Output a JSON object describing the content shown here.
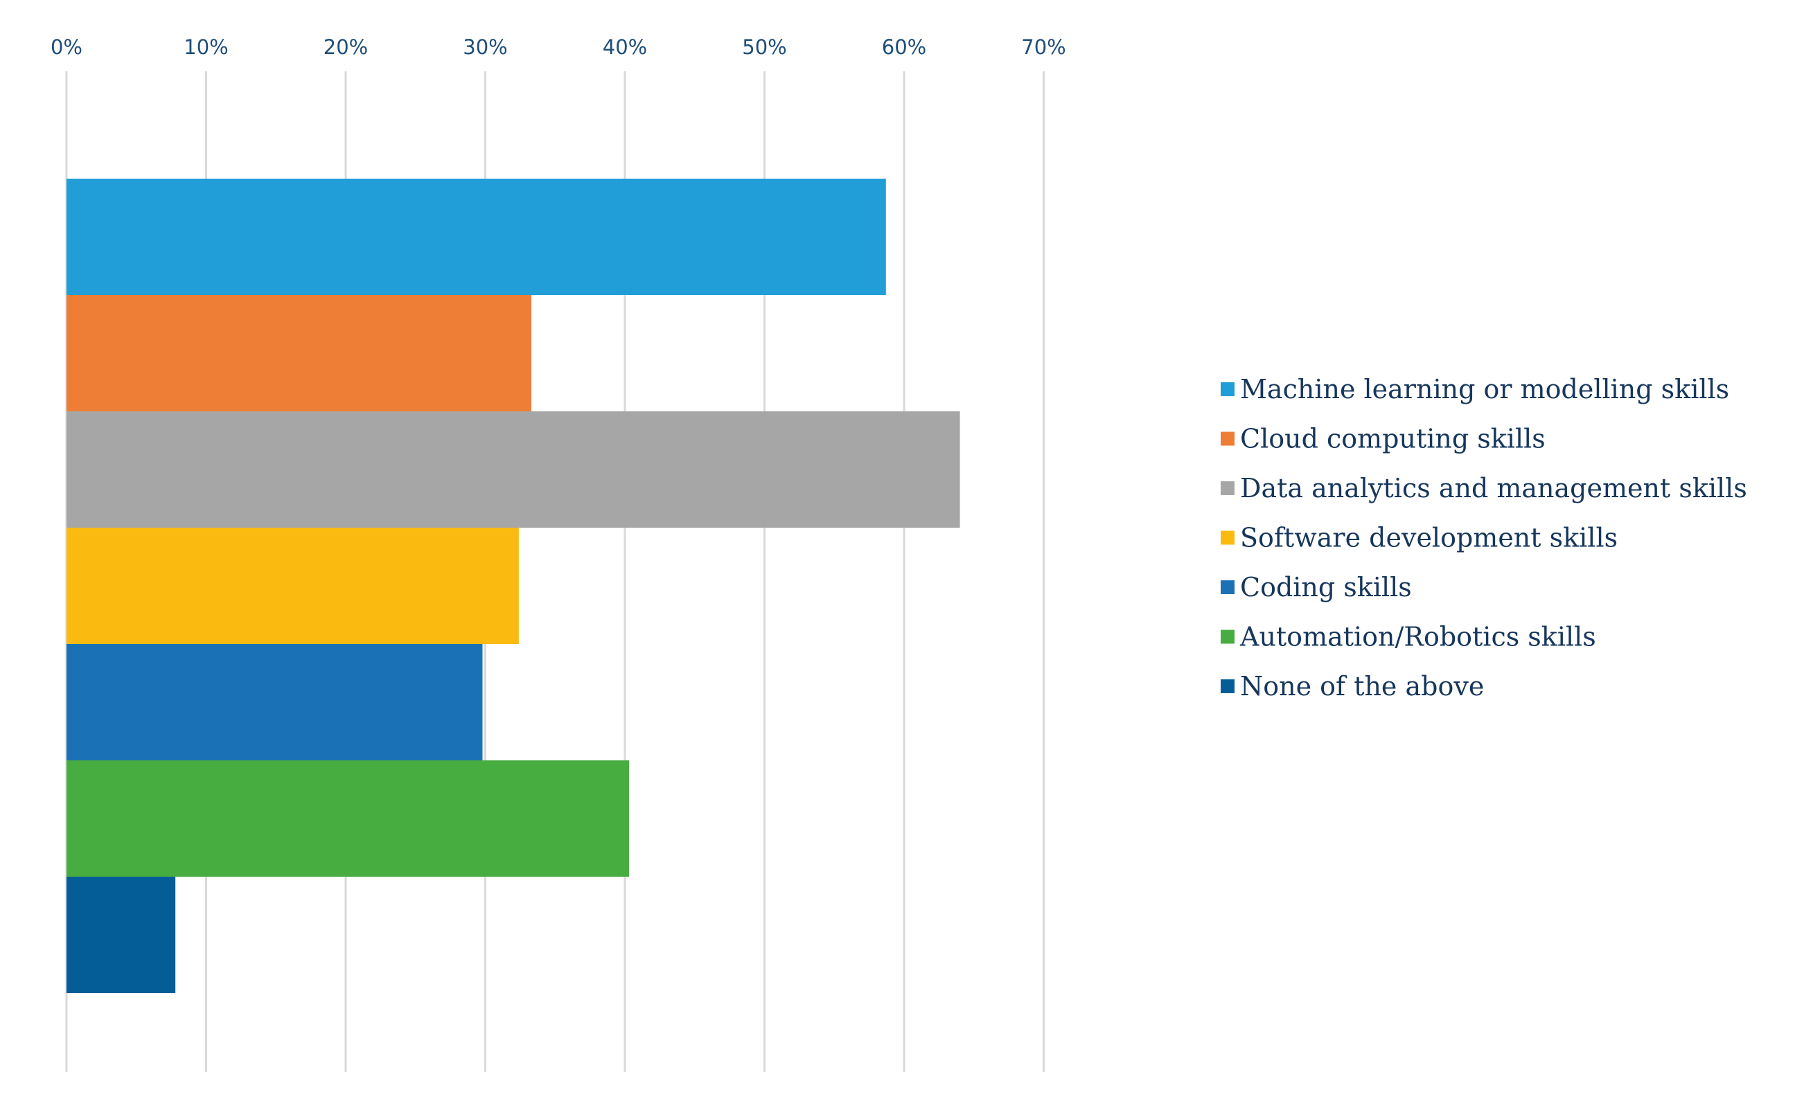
{
  "chart_data": {
    "type": "bar",
    "orientation": "horizontal",
    "title": "",
    "xlabel": "",
    "ylabel": "",
    "xlim": [
      0,
      70
    ],
    "x_ticks": [
      0,
      10,
      20,
      30,
      40,
      50,
      60,
      70
    ],
    "x_tick_labels": [
      "0%",
      "10%",
      "20%",
      "30%",
      "40%",
      "50%",
      "60%",
      "70%"
    ],
    "axis_position": "top",
    "grid": "vertical",
    "legend_position": "right",
    "series": [
      {
        "name": "Machine learning or modelling skills",
        "value": 58.7,
        "color": "#219ED8"
      },
      {
        "name": "Cloud computing skills",
        "value": 33.3,
        "color": "#EE7D35"
      },
      {
        "name": "Data analytics and management skills",
        "value": 64.0,
        "color": "#A6A6A6"
      },
      {
        "name": "Software development skills",
        "value": 32.4,
        "color": "#FABA10"
      },
      {
        "name": "Coding skills",
        "value": 29.8,
        "color": "#1B71B6"
      },
      {
        "name": "Automation/Robotics skills",
        "value": 40.3,
        "color": "#47AD41"
      },
      {
        "name": "None of the above",
        "value": 7.8,
        "color": "#055D98"
      }
    ]
  }
}
